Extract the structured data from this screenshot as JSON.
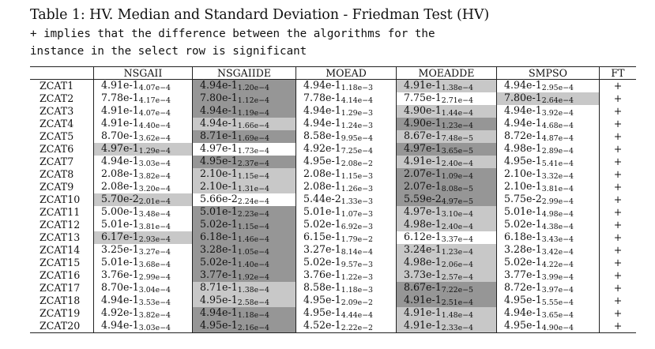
{
  "caption": {
    "title": "Table 1: HV. Median and Standard Deviation - Friedman Test (HV)",
    "note_line1": "+ implies that the difference between the algorithms for the",
    "note_line2": "instance in the select row is significant"
  },
  "colors": {
    "dark_shade": "#969696",
    "light_shade": "#c8c8c8"
  },
  "table": {
    "headers": [
      "",
      "NSGAII",
      "NSGAIIDE",
      "MOEAD",
      "MOEADDE",
      "SMPSO",
      "FT"
    ],
    "rows": [
      {
        "instance": "ZCAT1",
        "ft": "+",
        "cells": [
          {
            "median": "4.91e-1",
            "sd": "4.07e−4",
            "shade": "none"
          },
          {
            "median": "4.94e-1",
            "sd": "1.20e−4",
            "shade": "dark"
          },
          {
            "median": "4.94e-1",
            "sd": "1.18e−3",
            "shade": "none"
          },
          {
            "median": "4.91e-1",
            "sd": "1.38e−4",
            "shade": "light"
          },
          {
            "median": "4.94e-1",
            "sd": "2.95e−4",
            "shade": "none"
          }
        ]
      },
      {
        "instance": "ZCAT2",
        "ft": "+",
        "cells": [
          {
            "median": "7.78e-1",
            "sd": "4.17e−4",
            "shade": "none"
          },
          {
            "median": "7.80e-1",
            "sd": "1.12e−4",
            "shade": "dark"
          },
          {
            "median": "7.78e-1",
            "sd": "4.14e−4",
            "shade": "none"
          },
          {
            "median": "7.75e-1",
            "sd": "2.71e−4",
            "shade": "none"
          },
          {
            "median": "7.80e-1",
            "sd": "2.64e−4",
            "shade": "light"
          }
        ]
      },
      {
        "instance": "ZCAT3",
        "ft": "+",
        "cells": [
          {
            "median": "4.91e-1",
            "sd": "4.07e−4",
            "shade": "none"
          },
          {
            "median": "4.94e-1",
            "sd": "1.19e−4",
            "shade": "dark"
          },
          {
            "median": "4.94e-1",
            "sd": "1.29e−3",
            "shade": "none"
          },
          {
            "median": "4.90e-1",
            "sd": "1.44e−4",
            "shade": "light"
          },
          {
            "median": "4.94e-1",
            "sd": "3.92e−4",
            "shade": "none"
          }
        ]
      },
      {
        "instance": "ZCAT4",
        "ft": "+",
        "cells": [
          {
            "median": "4.91e-1",
            "sd": "4.40e−4",
            "shade": "none"
          },
          {
            "median": "4.94e-1",
            "sd": "1.66e−4",
            "shade": "light"
          },
          {
            "median": "4.94e-1",
            "sd": "1.24e−3",
            "shade": "none"
          },
          {
            "median": "4.90e-1",
            "sd": "1.23e−4",
            "shade": "dark"
          },
          {
            "median": "4.94e-1",
            "sd": "4.68e−4",
            "shade": "none"
          }
        ]
      },
      {
        "instance": "ZCAT5",
        "ft": "+",
        "cells": [
          {
            "median": "8.70e-1",
            "sd": "3.62e−4",
            "shade": "none"
          },
          {
            "median": "8.71e-1",
            "sd": "1.69e−4",
            "shade": "dark"
          },
          {
            "median": "8.58e-1",
            "sd": "9.95e−4",
            "shade": "none"
          },
          {
            "median": "8.67e-1",
            "sd": "7.48e−5",
            "shade": "light"
          },
          {
            "median": "8.72e-1",
            "sd": "4.87e−4",
            "shade": "none"
          }
        ]
      },
      {
        "instance": "ZCAT6",
        "ft": "+",
        "cells": [
          {
            "median": "4.97e-1",
            "sd": "1.29e−4",
            "shade": "light"
          },
          {
            "median": "4.97e-1",
            "sd": "1.73e−4",
            "shade": "none"
          },
          {
            "median": "4.92e-1",
            "sd": "7.25e−4",
            "shade": "none"
          },
          {
            "median": "4.97e-1",
            "sd": "3.65e−5",
            "shade": "dark"
          },
          {
            "median": "4.98e-1",
            "sd": "2.89e−4",
            "shade": "none"
          }
        ]
      },
      {
        "instance": "ZCAT7",
        "ft": "+",
        "cells": [
          {
            "median": "4.94e-1",
            "sd": "3.03e−4",
            "shade": "none"
          },
          {
            "median": "4.95e-1",
            "sd": "2.37e−4",
            "shade": "dark"
          },
          {
            "median": "4.95e-1",
            "sd": "2.08e−2",
            "shade": "none"
          },
          {
            "median": "4.91e-1",
            "sd": "2.40e−4",
            "shade": "light"
          },
          {
            "median": "4.95e-1",
            "sd": "5.41e−4",
            "shade": "none"
          }
        ]
      },
      {
        "instance": "ZCAT8",
        "ft": "+",
        "cells": [
          {
            "median": "2.08e-1",
            "sd": "3.82e−4",
            "shade": "none"
          },
          {
            "median": "2.10e-1",
            "sd": "1.15e−4",
            "shade": "light"
          },
          {
            "median": "2.08e-1",
            "sd": "1.15e−3",
            "shade": "none"
          },
          {
            "median": "2.07e-1",
            "sd": "1.09e−4",
            "shade": "dark"
          },
          {
            "median": "2.10e-1",
            "sd": "3.32e−4",
            "shade": "none"
          }
        ]
      },
      {
        "instance": "ZCAT9",
        "ft": "+",
        "cells": [
          {
            "median": "2.08e-1",
            "sd": "3.20e−4",
            "shade": "none"
          },
          {
            "median": "2.10e-1",
            "sd": "1.31e−4",
            "shade": "light"
          },
          {
            "median": "2.08e-1",
            "sd": "1.26e−3",
            "shade": "none"
          },
          {
            "median": "2.07e-1",
            "sd": "8.08e−5",
            "shade": "dark"
          },
          {
            "median": "2.10e-1",
            "sd": "3.81e−4",
            "shade": "none"
          }
        ]
      },
      {
        "instance": "ZCAT10",
        "ft": "+",
        "cells": [
          {
            "median": "5.70e-2",
            "sd": "2.01e−4",
            "shade": "light"
          },
          {
            "median": "5.66e-2",
            "sd": "2.24e−4",
            "shade": "none"
          },
          {
            "median": "5.44e-2",
            "sd": "1.33e−3",
            "shade": "none"
          },
          {
            "median": "5.59e-2",
            "sd": "4.97e−5",
            "shade": "dark"
          },
          {
            "median": "5.75e-2",
            "sd": "2.99e−4",
            "shade": "none"
          }
        ]
      },
      {
        "instance": "ZCAT11",
        "ft": "+",
        "cells": [
          {
            "median": "5.00e-1",
            "sd": "3.48e−4",
            "shade": "none"
          },
          {
            "median": "5.01e-1",
            "sd": "2.23e−4",
            "shade": "dark"
          },
          {
            "median": "5.01e-1",
            "sd": "1.07e−3",
            "shade": "none"
          },
          {
            "median": "4.97e-1",
            "sd": "3.10e−4",
            "shade": "light"
          },
          {
            "median": "5.01e-1",
            "sd": "4.98e−4",
            "shade": "none"
          }
        ]
      },
      {
        "instance": "ZCAT12",
        "ft": "+",
        "cells": [
          {
            "median": "5.01e-1",
            "sd": "3.81e−4",
            "shade": "none"
          },
          {
            "median": "5.02e-1",
            "sd": "1.15e−4",
            "shade": "dark"
          },
          {
            "median": "5.02e-1",
            "sd": "6.92e−3",
            "shade": "none"
          },
          {
            "median": "4.98e-1",
            "sd": "2.40e−4",
            "shade": "light"
          },
          {
            "median": "5.02e-1",
            "sd": "4.38e−4",
            "shade": "none"
          }
        ]
      },
      {
        "instance": "ZCAT13",
        "ft": "+",
        "cells": [
          {
            "median": "6.17e-1",
            "sd": "2.93e−4",
            "shade": "light"
          },
          {
            "median": "6.18e-1",
            "sd": "1.46e−4",
            "shade": "dark"
          },
          {
            "median": "6.15e-1",
            "sd": "1.79e−2",
            "shade": "none"
          },
          {
            "median": "6.12e-1",
            "sd": "3.37e−4",
            "shade": "none"
          },
          {
            "median": "6.18e-1",
            "sd": "3.43e−4",
            "shade": "none"
          }
        ]
      },
      {
        "instance": "ZCAT14",
        "ft": "+",
        "cells": [
          {
            "median": "3.25e-1",
            "sd": "3.27e−4",
            "shade": "none"
          },
          {
            "median": "3.28e-1",
            "sd": "1.05e−4",
            "shade": "dark"
          },
          {
            "median": "3.27e-1",
            "sd": "8.14e−4",
            "shade": "none"
          },
          {
            "median": "3.24e-1",
            "sd": "1.23e−4",
            "shade": "light"
          },
          {
            "median": "3.28e-1",
            "sd": "3.42e−4",
            "shade": "none"
          }
        ]
      },
      {
        "instance": "ZCAT15",
        "ft": "+",
        "cells": [
          {
            "median": "5.01e-1",
            "sd": "3.68e−4",
            "shade": "none"
          },
          {
            "median": "5.02e-1",
            "sd": "1.40e−4",
            "shade": "dark"
          },
          {
            "median": "5.02e-1",
            "sd": "9.57e−3",
            "shade": "none"
          },
          {
            "median": "4.98e-1",
            "sd": "2.06e−4",
            "shade": "light"
          },
          {
            "median": "5.02e-1",
            "sd": "4.22e−4",
            "shade": "none"
          }
        ]
      },
      {
        "instance": "ZCAT16",
        "ft": "+",
        "cells": [
          {
            "median": "3.76e-1",
            "sd": "2.99e−4",
            "shade": "none"
          },
          {
            "median": "3.77e-1",
            "sd": "1.92e−4",
            "shade": "dark"
          },
          {
            "median": "3.76e-1",
            "sd": "1.22e−3",
            "shade": "none"
          },
          {
            "median": "3.73e-1",
            "sd": "2.57e−4",
            "shade": "light"
          },
          {
            "median": "3.77e-1",
            "sd": "3.99e−4",
            "shade": "none"
          }
        ]
      },
      {
        "instance": "ZCAT17",
        "ft": "+",
        "cells": [
          {
            "median": "8.70e-1",
            "sd": "3.04e−4",
            "shade": "none"
          },
          {
            "median": "8.71e-1",
            "sd": "1.38e−4",
            "shade": "light"
          },
          {
            "median": "8.58e-1",
            "sd": "1.18e−3",
            "shade": "none"
          },
          {
            "median": "8.67e-1",
            "sd": "7.22e−5",
            "shade": "dark"
          },
          {
            "median": "8.72e-1",
            "sd": "3.97e−4",
            "shade": "none"
          }
        ]
      },
      {
        "instance": "ZCAT18",
        "ft": "+",
        "cells": [
          {
            "median": "4.94e-1",
            "sd": "3.53e−4",
            "shade": "none"
          },
          {
            "median": "4.95e-1",
            "sd": "2.58e−4",
            "shade": "light"
          },
          {
            "median": "4.95e-1",
            "sd": "2.09e−2",
            "shade": "none"
          },
          {
            "median": "4.91e-1",
            "sd": "2.51e−4",
            "shade": "dark"
          },
          {
            "median": "4.95e-1",
            "sd": "5.55e−4",
            "shade": "none"
          }
        ]
      },
      {
        "instance": "ZCAT19",
        "ft": "+",
        "cells": [
          {
            "median": "4.92e-1",
            "sd": "3.82e−4",
            "shade": "none"
          },
          {
            "median": "4.94e-1",
            "sd": "1.18e−4",
            "shade": "dark"
          },
          {
            "median": "4.95e-1",
            "sd": "4.44e−4",
            "shade": "none"
          },
          {
            "median": "4.91e-1",
            "sd": "1.48e−4",
            "shade": "light"
          },
          {
            "median": "4.94e-1",
            "sd": "3.65e−4",
            "shade": "none"
          }
        ]
      },
      {
        "instance": "ZCAT20",
        "ft": "+",
        "cells": [
          {
            "median": "4.94e-1",
            "sd": "3.03e−4",
            "shade": "none"
          },
          {
            "median": "4.95e-1",
            "sd": "2.16e−4",
            "shade": "dark"
          },
          {
            "median": "4.52e-1",
            "sd": "2.22e−2",
            "shade": "none"
          },
          {
            "median": "4.91e-1",
            "sd": "2.33e−4",
            "shade": "light"
          },
          {
            "median": "4.95e-1",
            "sd": "4.90e−4",
            "shade": "none"
          }
        ]
      }
    ]
  }
}
